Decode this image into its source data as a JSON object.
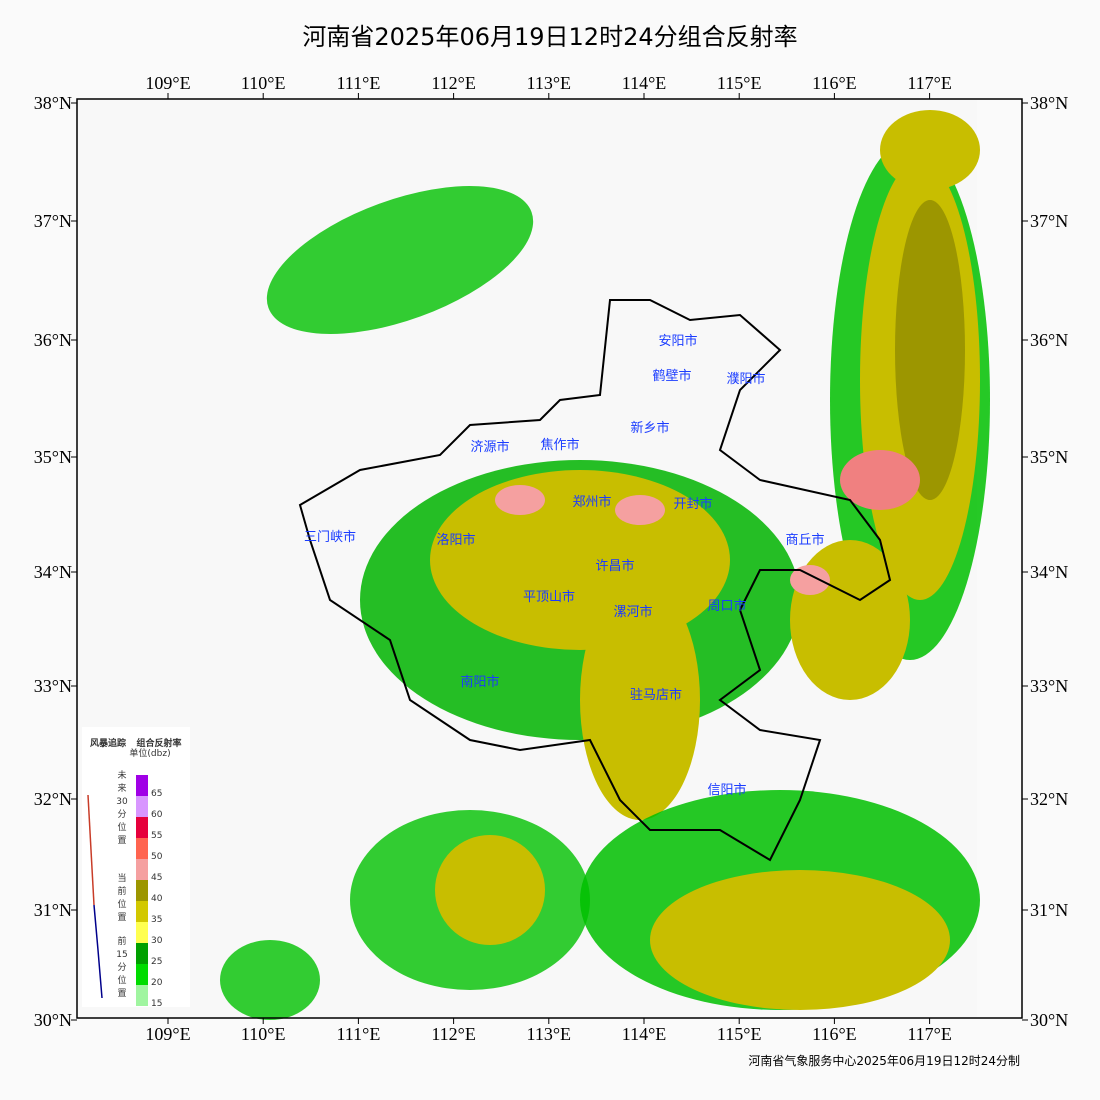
{
  "title": "河南省2025年06月19日12时24分组合反射率",
  "lon_labels": [
    "109°E",
    "110°E",
    "111°E",
    "112°E",
    "113°E",
    "114°E",
    "115°E",
    "116°E",
    "117°E"
  ],
  "lat_labels": [
    "38°N",
    "37°N",
    "36°N",
    "35°N",
    "34°N",
    "33°N",
    "32°N",
    "31°N",
    "30°N"
  ],
  "cities": [
    "安阳市",
    "鹤壁市",
    "濮阳市",
    "新乡市",
    "济源市",
    "焦作市",
    "郑州市",
    "开封市",
    "三门峡市",
    "洛阳市",
    "商丘市",
    "许昌市",
    "平顶山市",
    "漯河市",
    "周口市",
    "南阳市",
    "驻马店市",
    "信阳市"
  ],
  "legend": {
    "storm_title": "风暴追踪",
    "refl_title": "组合反射率",
    "unit": "单位(dbz)",
    "future": [
      "未",
      "来",
      "30",
      "分",
      "位",
      "置"
    ],
    "current": [
      "当",
      "前",
      "位",
      "置"
    ],
    "past": [
      "前",
      "15",
      "分",
      "位",
      "置"
    ],
    "levels": [
      "65",
      "60",
      "55",
      "50",
      "45",
      "40",
      "35",
      "30",
      "25",
      "20",
      "15"
    ],
    "colors": [
      "#a000e6",
      "#d896ff",
      "#e6003c",
      "#ff6450",
      "#f5a0a0",
      "#9c9600",
      "#d2c800",
      "#ffff50",
      "#00a000",
      "#00dc00",
      "#a0f5a0"
    ]
  },
  "footer": "河南省气象服务中心2025年06月19日12时24分制"
}
